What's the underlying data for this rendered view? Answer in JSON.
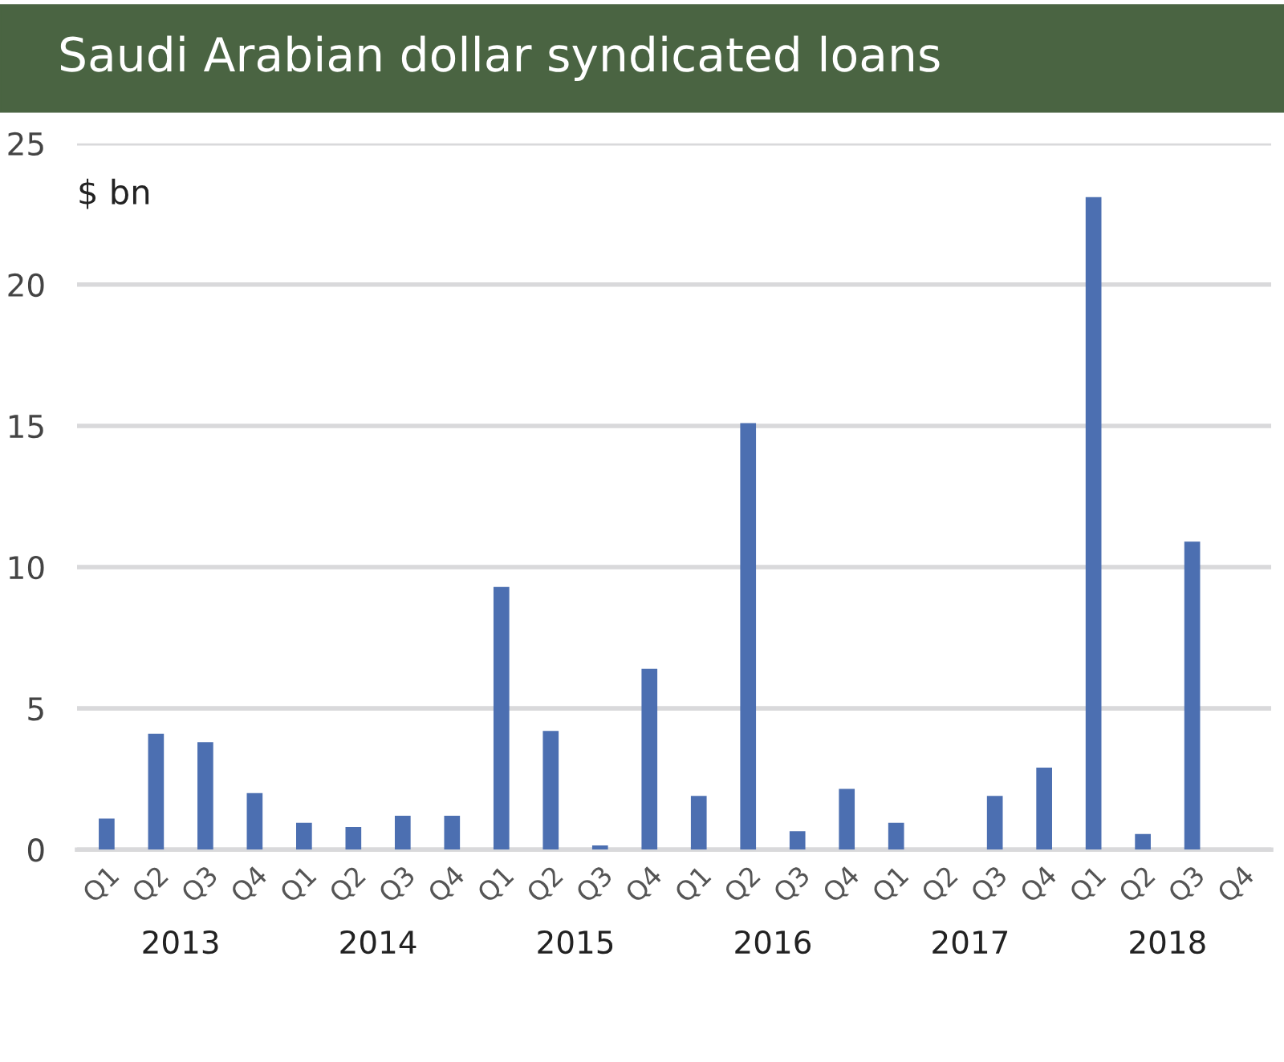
{
  "chart_data": {
    "type": "bar",
    "title": "Saudi Arabian dollar syndicated loans",
    "ylabel": "$ bn",
    "categories": [
      "Q1",
      "Q2",
      "Q3",
      "Q4",
      "Q1",
      "Q2",
      "Q3",
      "Q4",
      "Q1",
      "Q2",
      "Q3",
      "Q4",
      "Q1",
      "Q2",
      "Q3",
      "Q4",
      "Q1",
      "Q2",
      "Q3",
      "Q4",
      "Q1",
      "Q2",
      "Q3",
      "Q4"
    ],
    "values": [
      1.1,
      4.1,
      3.8,
      2.0,
      0.95,
      0.8,
      1.2,
      1.2,
      9.3,
      4.2,
      0.15,
      6.4,
      1.9,
      15.1,
      0.65,
      2.15,
      0.95,
      null,
      1.9,
      2.9,
      23.1,
      0.55,
      10.9,
      null
    ],
    "color": "#4c6fb1",
    "annotations": [
      "2013",
      "2014",
      "2015",
      "2016",
      "2017",
      "2018"
    ],
    "ylim": [
      0,
      25
    ],
    "yticks": [
      0,
      5,
      10,
      15,
      20,
      25
    ],
    "grid": "y"
  }
}
